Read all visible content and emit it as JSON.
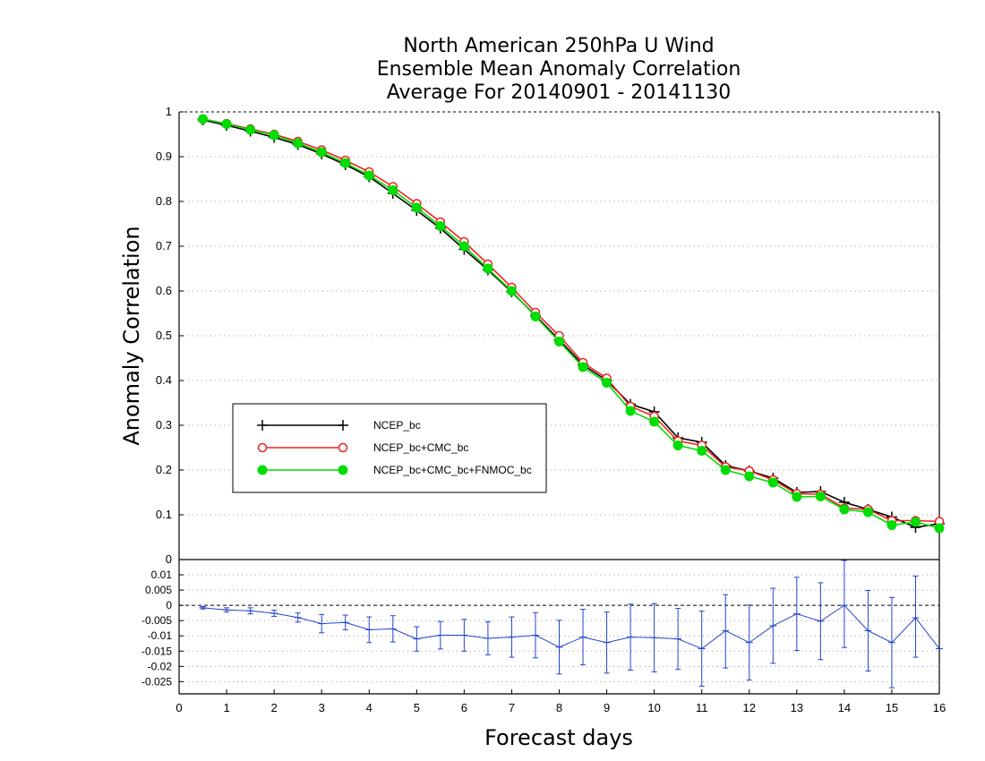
{
  "chart_data": {
    "type": "line",
    "title": [
      "North American 250hPa U Wind",
      "Ensemble Mean Anomaly Correlation",
      "Average For 20140901 - 20141130"
    ],
    "xlabel": "Forecast days",
    "ylabel": "Anomaly Correlation",
    "xlim": [
      0,
      16
    ],
    "x_ticks": [
      "0",
      "1",
      "2",
      "3",
      "4",
      "5",
      "6",
      "7",
      "8",
      "9",
      "10",
      "11",
      "12",
      "13",
      "14",
      "15",
      "16"
    ],
    "grid": true,
    "legend_position": "center-left",
    "x": [
      0.5,
      1,
      1.5,
      2,
      2.5,
      3,
      3.5,
      4,
      4.5,
      5,
      5.5,
      6,
      6.5,
      7,
      7.5,
      8,
      8.5,
      9,
      9.5,
      10,
      10.5,
      11,
      11.5,
      12,
      12.5,
      13,
      13.5,
      14,
      14.5,
      15,
      15.5,
      16
    ],
    "main_panel": {
      "ylim": [
        0,
        1
      ],
      "y_ticks": [
        "0",
        "0.1",
        "0.2",
        "0.3",
        "0.4",
        "0.5",
        "0.6",
        "0.7",
        "0.8",
        "0.9",
        "1"
      ],
      "series": [
        {
          "name": "NCEP_bc",
          "color": "#000000",
          "marker": "plus",
          "values": [
            0.982,
            0.97,
            0.957,
            0.943,
            0.927,
            0.906,
            0.882,
            0.855,
            0.818,
            0.78,
            0.74,
            0.693,
            0.647,
            0.598,
            0.545,
            0.491,
            0.435,
            0.4,
            0.347,
            0.33,
            0.272,
            0.262,
            0.21,
            0.198,
            0.182,
            0.15,
            0.152,
            0.128,
            0.112,
            0.095,
            0.072,
            0.08
          ]
        },
        {
          "name": "NCEP_bc+CMC_bc",
          "color": "#ee2222",
          "marker": "open-circle",
          "values": [
            0.984,
            0.974,
            0.962,
            0.95,
            0.934,
            0.915,
            0.892,
            0.866,
            0.833,
            0.795,
            0.754,
            0.71,
            0.66,
            0.608,
            0.552,
            0.5,
            0.44,
            0.405,
            0.342,
            0.32,
            0.265,
            0.255,
            0.207,
            0.198,
            0.178,
            0.147,
            0.146,
            0.115,
            0.112,
            0.087,
            0.087,
            0.085
          ]
        },
        {
          "name": "NCEP_bc+CMC_bc+FNMOC_bc",
          "color": "#00dd00",
          "marker": "filled-circle",
          "values": [
            0.984,
            0.973,
            0.96,
            0.948,
            0.93,
            0.91,
            0.886,
            0.858,
            0.825,
            0.786,
            0.745,
            0.7,
            0.65,
            0.6,
            0.543,
            0.487,
            0.43,
            0.395,
            0.332,
            0.308,
            0.255,
            0.243,
            0.2,
            0.186,
            0.172,
            0.14,
            0.141,
            0.112,
            0.106,
            0.077,
            0.084,
            0.07
          ]
        }
      ]
    },
    "diff_panel": {
      "ylim": [
        -0.029,
        0.015
      ],
      "y_ticks": [
        "0.01",
        "0.005",
        "0",
        "-0.005",
        "-0.01",
        "-0.015",
        "-0.02",
        "-0.025"
      ],
      "color": "#2244cc",
      "values": [
        -0.0008,
        -0.0015,
        -0.0018,
        -0.0026,
        -0.004,
        -0.006,
        -0.0056,
        -0.008,
        -0.0077,
        -0.011,
        -0.0098,
        -0.0098,
        -0.0108,
        -0.0104,
        -0.0098,
        -0.0137,
        -0.0104,
        -0.0122,
        -0.0104,
        -0.0106,
        -0.011,
        -0.0142,
        -0.0083,
        -0.0122,
        -0.0067,
        -0.0028,
        -0.0052,
        0.0,
        -0.0083,
        -0.0122,
        -0.0041,
        -0.0142
      ],
      "err_low": [
        -0.0012,
        -0.0022,
        -0.0028,
        -0.0036,
        -0.0055,
        -0.009,
        -0.008,
        -0.0122,
        -0.012,
        -0.015,
        -0.0143,
        -0.015,
        -0.0162,
        -0.017,
        -0.0172,
        -0.0225,
        -0.0195,
        -0.0222,
        -0.0212,
        -0.0218,
        -0.021,
        -0.0265,
        -0.0205,
        -0.0245,
        -0.019,
        -0.0148,
        -0.0178,
        -0.0138,
        -0.0215,
        -0.027,
        -0.017,
        -0.0142
      ],
      "err_high": [
        -0.0004,
        -0.0008,
        -0.0008,
        -0.0016,
        -0.0025,
        -0.003,
        -0.0032,
        -0.0038,
        -0.0034,
        -0.007,
        -0.0053,
        -0.0046,
        -0.0054,
        -0.0038,
        -0.0024,
        -0.0049,
        -0.0013,
        -0.0022,
        0.0004,
        0.0006,
        -0.001,
        -0.0019,
        0.0035,
        0.0001,
        0.0056,
        0.0092,
        0.0074,
        0.0147,
        0.0049,
        0.0026,
        0.0096,
        -0.0142
      ]
    }
  }
}
